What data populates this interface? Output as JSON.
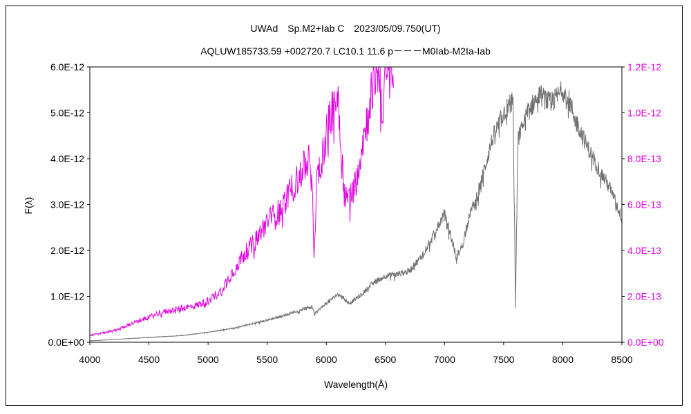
{
  "chart_data": {
    "type": "line",
    "title": "UWAd　Sp.M2+Iab C　2023/05/09.750(UT)",
    "subtitle": "AQLUW185733.59 +002720.7 LC10.1 11.6 p－－－M0Iab-M2Ia-Iab",
    "xlabel": "Wavelength(Å)",
    "ylabel": "F(λ)",
    "xlim": [
      4000,
      8500
    ],
    "ylim_left": [
      0,
      6e-12
    ],
    "ylim_right": [
      0,
      1.2e-12
    ],
    "x_ticks": [
      "4000",
      "4500",
      "5000",
      "5500",
      "6000",
      "6500",
      "7000",
      "7500",
      "8000",
      "8500"
    ],
    "y_ticks_left": [
      "0.0E+00",
      "1.0E-12",
      "2.0E-12",
      "3.0E-12",
      "4.0E-12",
      "5.0E-12",
      "6.0E-12"
    ],
    "y_ticks_right": [
      "0.0E+00",
      "2.0E-13",
      "4.0E-13",
      "6.0E-13",
      "8.0E-13",
      "1.0E-12",
      "1.2E-12"
    ],
    "grid": false,
    "colors": {
      "left_series": "#707070",
      "right_series": "#e000e0",
      "right_axis": "#e000e0"
    },
    "series": [
      {
        "axis": "left",
        "x": [
          4000,
          4200,
          4400,
          4600,
          4800,
          5000,
          5200,
          5400,
          5600,
          5800,
          5880,
          5900,
          6000,
          6100,
          6200,
          6300,
          6400,
          6500,
          6600,
          6700,
          6800,
          6900,
          7000,
          7050,
          7100,
          7150,
          7200,
          7300,
          7400,
          7500,
          7580,
          7600,
          7620,
          7700,
          7800,
          7900,
          8000,
          8050,
          8100,
          8200,
          8300,
          8400,
          8500
        ],
        "y": [
          3e-14,
          6e-14,
          9e-14,
          1.2e-13,
          1.5e-13,
          2.2e-13,
          3e-13,
          4.2e-13,
          5.5e-13,
          7.2e-13,
          7.8e-13,
          6.2e-13,
          8.5e-13,
          1.05e-12,
          8.5e-13,
          1.05e-12,
          1.3e-12,
          1.45e-12,
          1.48e-12,
          1.55e-12,
          1.85e-12,
          2.3e-12,
          2.8e-12,
          2.35e-12,
          1.85e-12,
          2.1e-12,
          2.65e-12,
          3.4e-12,
          4.4e-12,
          5e-12,
          5.3e-12,
          7.5e-13,
          4.4e-12,
          5e-12,
          5.4e-12,
          5.2e-12,
          5.5e-12,
          5.3e-12,
          4.9e-12,
          4.3e-12,
          3.8e-12,
          3.35e-12,
          2.7e-12
        ]
      },
      {
        "axis": "right",
        "x": [
          4000,
          4200,
          4400,
          4600,
          4800,
          4900,
          5000,
          5100,
          5200,
          5300,
          5400,
          5500,
          5600,
          5700,
          5800,
          5850,
          5880,
          5895,
          5920,
          6000,
          6050,
          6100,
          6150,
          6200,
          6250,
          6300,
          6350,
          6400,
          6450,
          6480,
          6500,
          6550,
          6570
        ],
        "y": [
          3e-14,
          5e-14,
          9e-14,
          1.3e-13,
          1.5e-13,
          1.6e-13,
          1.8e-13,
          2.2e-13,
          3e-13,
          3.8e-13,
          4.4e-13,
          5.3e-13,
          5.7e-13,
          6.6e-13,
          7.5e-13,
          8e-13,
          6.6e-13,
          3.8e-13,
          7e-13,
          9e-13,
          1.02e-12,
          1.07e-12,
          6.5e-13,
          6.3e-13,
          7e-13,
          8.6e-13,
          9.8e-13,
          1.15e-12,
          1.2e-12,
          9.5e-13,
          1.2e-12,
          1.2e-12,
          1.12e-12
        ]
      }
    ]
  }
}
